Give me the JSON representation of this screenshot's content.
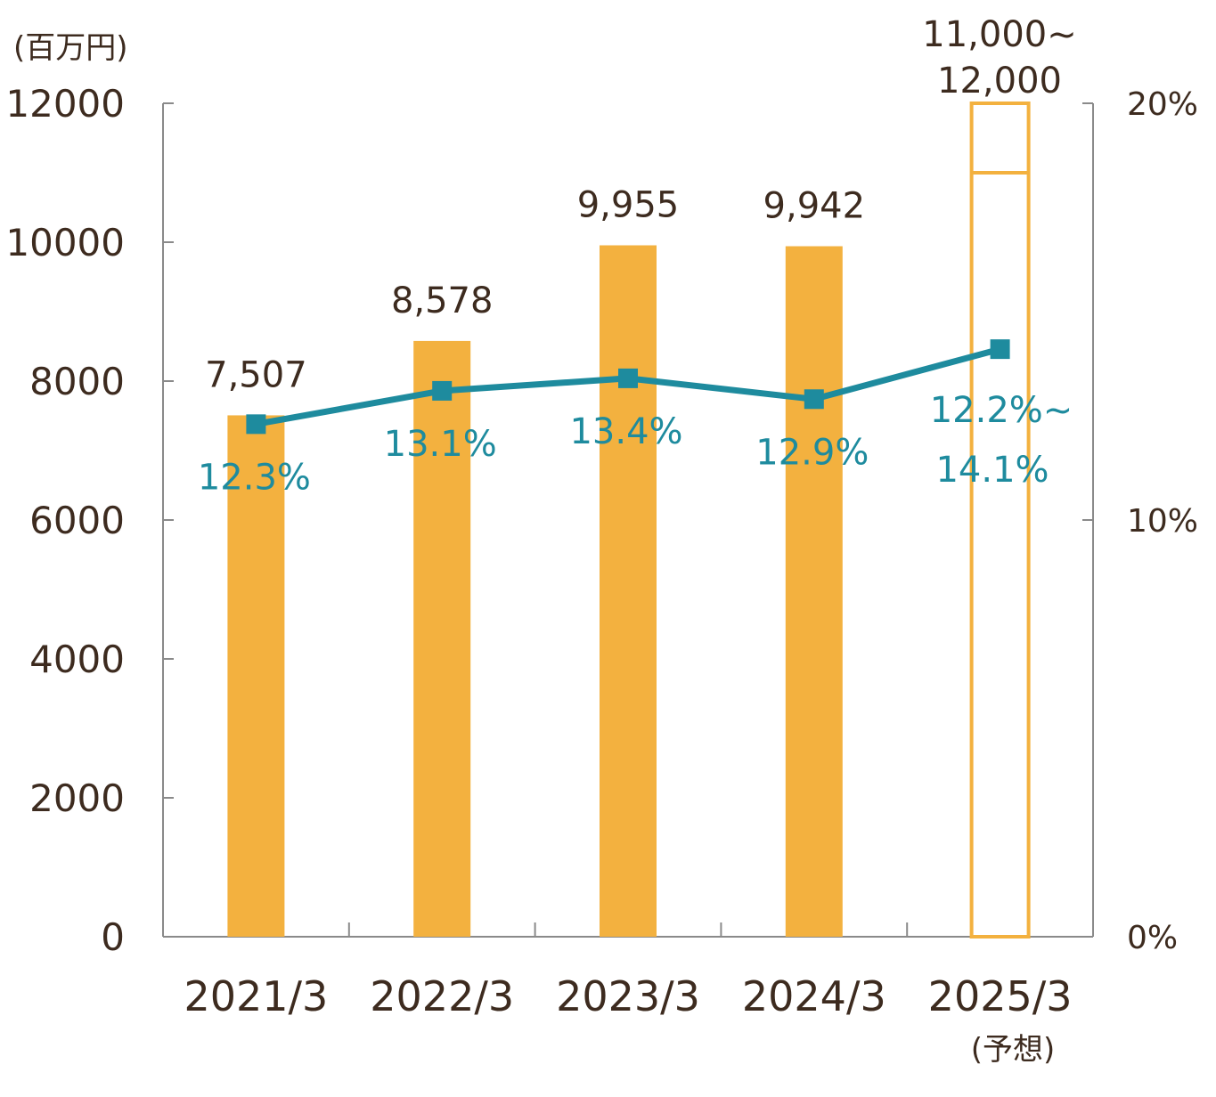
{
  "chart_data": {
    "type": "bar",
    "unit_label": "(百万円)",
    "categories": [
      "2021/3",
      "2022/3",
      "2023/3",
      "2024/3",
      "2025/3"
    ],
    "category_notes": [
      "",
      "",
      "",
      "",
      "(予想)"
    ],
    "series": [
      {
        "type": "bar",
        "axis": "left",
        "values": [
          7507,
          8578,
          9955,
          9942,
          null
        ],
        "labels": [
          "7,507",
          "8,578",
          "9,955",
          "9,942",
          ""
        ],
        "forecast": {
          "index": 4,
          "low": 11000,
          "high": 12000,
          "label_line1": "11,000~",
          "label_line2": "12,000"
        }
      },
      {
        "type": "line",
        "axis": "right",
        "values": [
          12.3,
          13.1,
          13.4,
          12.9,
          14.1
        ],
        "labels": [
          "12.3%",
          "13.1%",
          "13.4%",
          "12.9%",
          ""
        ],
        "forecast_label_line1": "12.2%~",
        "forecast_label_line2": "14.1%"
      }
    ],
    "y_left": {
      "min": 0,
      "max": 12000,
      "ticks": [
        0,
        2000,
        4000,
        6000,
        8000,
        10000,
        12000
      ],
      "tick_labels": [
        "0",
        "2000",
        "4000",
        "6000",
        "8000",
        "10000",
        "12000"
      ]
    },
    "y_right": {
      "min": 0,
      "max": 20,
      "ticks": [
        0,
        10,
        20
      ],
      "tick_labels": [
        "0%",
        "10%",
        "20%"
      ]
    },
    "grid": false,
    "colors": {
      "bar": "#f3b13f",
      "line": "#1e8b9e",
      "text": "#3d2b1f",
      "axis": "#8a8a8a"
    }
  }
}
